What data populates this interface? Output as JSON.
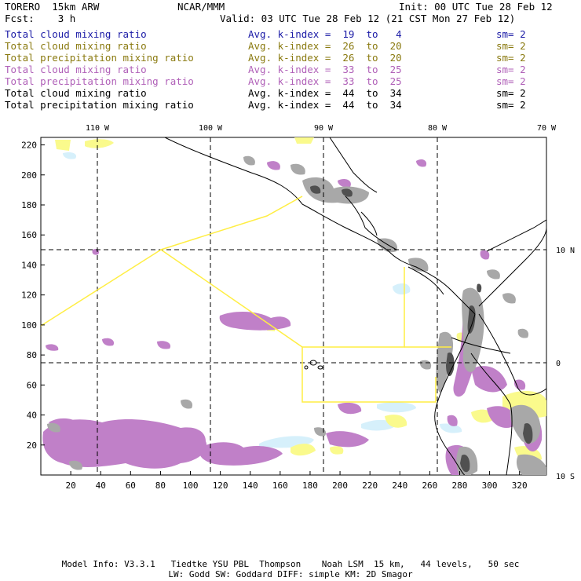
{
  "header": {
    "model": "TORERO  15km ARW",
    "org": "NCAR/MMM",
    "init": "Init: 00 UTC Tue 28 Feb 12",
    "fcst": "Fcst:    3 h",
    "valid": "Valid: 03 UTC Tue 28 Feb 12 (21 CST Mon 27 Feb 12)"
  },
  "fields": [
    {
      "name": "Total cloud mixing ratio",
      "k": "Avg. k-index =  19  to   4",
      "sm": "sm= 2",
      "color": "#1a1aa6"
    },
    {
      "name": "Total cloud mixing ratio",
      "k": "Avg. k-index =  26  to  20",
      "sm": "sm= 2",
      "color": "#8a7a10"
    },
    {
      "name": "Total precipitation mixing ratio",
      "k": "Avg. k-index =  26  to  20",
      "sm": "sm= 2",
      "color": "#8a7a10"
    },
    {
      "name": "Total cloud mixing ratio",
      "k": "Avg. k-index =  33  to  25",
      "sm": "sm= 2",
      "color": "#b060b8"
    },
    {
      "name": "Total precipitation mixing ratio",
      "k": "Avg. k-index =  33  to  25",
      "sm": "sm= 2",
      "color": "#b060b8"
    },
    {
      "name": "Total cloud mixing ratio",
      "k": "Avg. k-index =  44  to  34",
      "sm": "sm= 2",
      "color": "#000000"
    },
    {
      "name": "Total precipitation mixing ratio",
      "k": "Avg. k-index =  44  to  34",
      "sm": "sm= 2",
      "color": "#000000"
    }
  ],
  "map": {
    "lon_labels": [
      "110 W",
      "100 W",
      "90 W",
      "80 W",
      "70 W"
    ],
    "lat_labels": [
      "10 N",
      "0",
      "10 S"
    ],
    "y_ticks": [
      "220",
      "200",
      "180",
      "160",
      "140",
      "120",
      "100",
      "80",
      "60",
      "40",
      "20"
    ],
    "x_ticks": [
      "20",
      "40",
      "60",
      "80",
      "100",
      "120",
      "140",
      "160",
      "180",
      "200",
      "220",
      "240",
      "260",
      "280",
      "300",
      "320"
    ],
    "colors": {
      "light_blue": "#d6f0fb",
      "yellow": "#fafa8c",
      "purple": "#c080c8",
      "gray": "#a8a8a8",
      "dark_gray": "#505050",
      "box_line": "#ffee44"
    }
  },
  "footer": {
    "line1": "Model Info: V3.3.1   Tiedtke YSU PBL  Thompson    Noah LSM  15 km,   44 levels,   50 sec",
    "line2": "LW: Godd SW: Goddard DIFF: simple KM: 2D Smagor"
  }
}
